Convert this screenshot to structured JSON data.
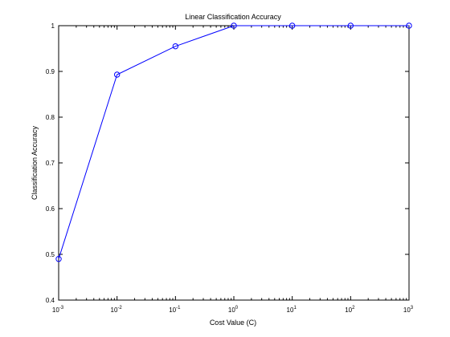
{
  "chart_data": {
    "type": "line",
    "title": "Linear Classification Accuracy",
    "xlabel": "Cost Value (C)",
    "ylabel": "Classification Accuracy",
    "xscale": "log",
    "xlim": [
      0.001,
      1000
    ],
    "ylim": [
      0.4,
      1.0
    ],
    "grid": false,
    "legend": "none",
    "x_ticks": [
      0.001,
      0.01,
      0.1,
      1,
      10,
      100,
      1000
    ],
    "x_tick_labels": [
      {
        "base": "10",
        "exp": "-3"
      },
      {
        "base": "10",
        "exp": "-2"
      },
      {
        "base": "10",
        "exp": "-1"
      },
      {
        "base": "10",
        "exp": "0"
      },
      {
        "base": "10",
        "exp": "1"
      },
      {
        "base": "10",
        "exp": "2"
      },
      {
        "base": "10",
        "exp": "3"
      }
    ],
    "y_ticks": [
      0.4,
      0.5,
      0.6,
      0.7,
      0.8,
      0.9,
      1.0
    ],
    "y_tick_labels": [
      "0.4",
      "0.5",
      "0.6",
      "0.7",
      "0.8",
      "0.9",
      "1"
    ],
    "series": [
      {
        "color": "#0000ff",
        "marker": "circle",
        "x": [
          0.001,
          0.01,
          0.1,
          1,
          10,
          100,
          1000
        ],
        "y": [
          0.49,
          0.893,
          0.955,
          1.0,
          1.0,
          1.0,
          1.0
        ]
      }
    ]
  }
}
